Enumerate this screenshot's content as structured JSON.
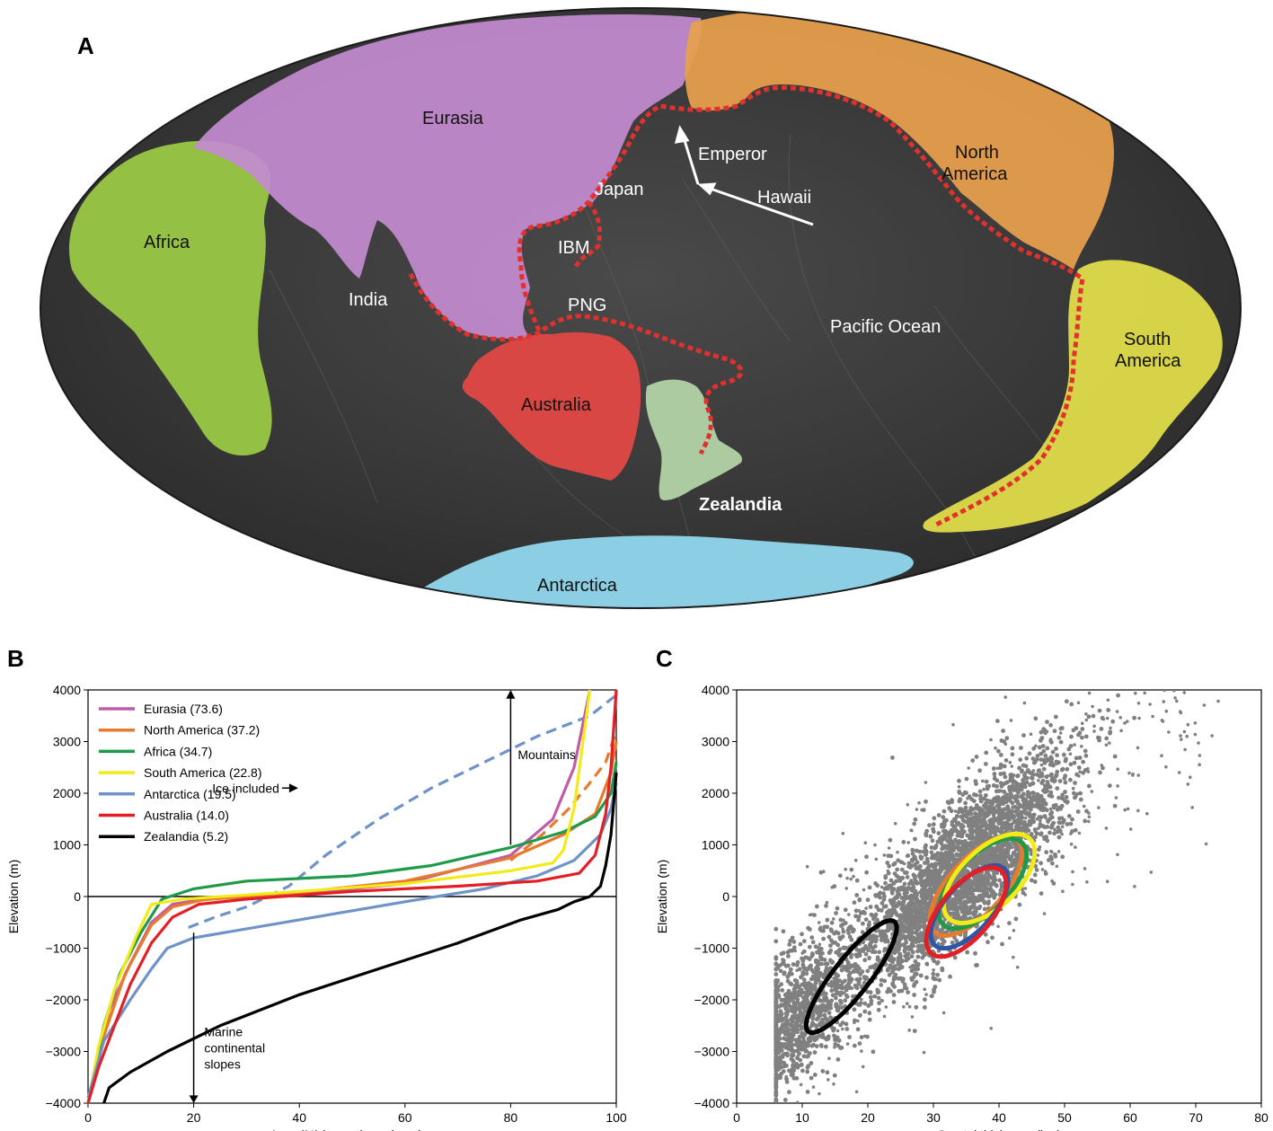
{
  "panel_letters": {
    "a": "A",
    "b": "B",
    "c": "C"
  },
  "map": {
    "labels": {
      "eurasia": "Eurasia",
      "africa": "Africa",
      "india": "India",
      "japan": "Japan",
      "emperor": "Emperor",
      "hawaii": "Hawaii",
      "ibm": "IBM",
      "png": "PNG",
      "north_america": [
        "North",
        "America"
      ],
      "south_america": [
        "South",
        "America"
      ],
      "pacific": "Pacific Ocean",
      "australia": "Australia",
      "zealandia": "Zealandia",
      "antarctica": "Antarctica"
    },
    "colors": {
      "eurasia": "#c48bd0",
      "africa": "#9ccc45",
      "north_america": "#e8a04e",
      "south_america": "#e3e04a",
      "australia": "#e24846",
      "zealandia": "#b3d3a6",
      "antarctica": "#8ccfe4",
      "ocean": "#3a3a3a",
      "boundary": "#e0312e"
    }
  },
  "chart_data": [
    {
      "type": "line",
      "panel": "B",
      "xlabel": "Area (%) lower than elevation",
      "ylabel": "Elevation (m)",
      "xlim": [
        0,
        100
      ],
      "ylim": [
        -4000,
        4000
      ],
      "xticks": [
        "0",
        "20",
        "40",
        "60",
        "80",
        "100"
      ],
      "yticks": [
        "−4000",
        "−3000",
        "−2000",
        "−1000",
        "0",
        "1000",
        "2000",
        "3000",
        "4000"
      ],
      "legend_position": "top-left",
      "series": [
        {
          "name": "Eurasia (73.6)",
          "color": "#c05ba8",
          "dashed": false,
          "points": [
            [
              0,
              -4000
            ],
            [
              2,
              -3000
            ],
            [
              4,
              -2200
            ],
            [
              8,
              -1300
            ],
            [
              12,
              -500
            ],
            [
              16,
              -150
            ],
            [
              22,
              -50
            ],
            [
              40,
              50
            ],
            [
              60,
              250
            ],
            [
              80,
              800
            ],
            [
              88,
              1500
            ],
            [
              92,
              2500
            ],
            [
              95,
              4000
            ]
          ]
        },
        {
          "name": "North America (37.2)",
          "color": "#e87a2e",
          "dashed": false,
          "points": [
            [
              0,
              -4000
            ],
            [
              3,
              -2700
            ],
            [
              7,
              -1500
            ],
            [
              12,
              -550
            ],
            [
              16,
              -200
            ],
            [
              22,
              -60
            ],
            [
              40,
              80
            ],
            [
              60,
              300
            ],
            [
              80,
              750
            ],
            [
              90,
              1200
            ],
            [
              96,
              1600
            ],
            [
              99,
              2400
            ],
            [
              100,
              3000
            ]
          ]
        },
        {
          "name": "Africa (34.7)",
          "color": "#1e9a48",
          "dashed": false,
          "points": [
            [
              0,
              -4000
            ],
            [
              3,
              -2500
            ],
            [
              6,
              -1500
            ],
            [
              10,
              -700
            ],
            [
              14,
              -50
            ],
            [
              20,
              150
            ],
            [
              30,
              300
            ],
            [
              50,
              400
            ],
            [
              65,
              600
            ],
            [
              80,
              950
            ],
            [
              90,
              1250
            ],
            [
              96,
              1550
            ],
            [
              99,
              2000
            ],
            [
              100,
              2600
            ]
          ]
        },
        {
          "name": "South America (22.8)",
          "color": "#f3ea19",
          "dashed": false,
          "points": [
            [
              0,
              -4000
            ],
            [
              2,
              -2900
            ],
            [
              5,
              -1800
            ],
            [
              9,
              -800
            ],
            [
              12,
              -150
            ],
            [
              18,
              -50
            ],
            [
              40,
              100
            ],
            [
              60,
              250
            ],
            [
              80,
              500
            ],
            [
              88,
              650
            ],
            [
              90,
              900
            ],
            [
              92,
              1700
            ],
            [
              95,
              4000
            ]
          ]
        },
        {
          "name": "Antarctica (19.5)",
          "color": "#6e93c9",
          "dashed": false,
          "points": [
            [
              0,
              -3900
            ],
            [
              3,
              -2800
            ],
            [
              8,
              -2000
            ],
            [
              12,
              -1400
            ],
            [
              15,
              -1000
            ],
            [
              20,
              -800
            ],
            [
              40,
              -450
            ],
            [
              60,
              -100
            ],
            [
              75,
              150
            ],
            [
              85,
              400
            ],
            [
              92,
              700
            ],
            [
              97,
              1200
            ],
            [
              99,
              1700
            ],
            [
              100,
              2200
            ]
          ]
        },
        {
          "name": "Australia (14.0)",
          "color": "#e31e24",
          "dashed": false,
          "points": [
            [
              0,
              -4000
            ],
            [
              2,
              -3300
            ],
            [
              5,
              -2500
            ],
            [
              8,
              -1700
            ],
            [
              12,
              -900
            ],
            [
              16,
              -400
            ],
            [
              21,
              -150
            ],
            [
              30,
              -50
            ],
            [
              50,
              100
            ],
            [
              70,
              200
            ],
            [
              85,
              300
            ],
            [
              93,
              450
            ],
            [
              96,
              800
            ],
            [
              98,
              1600
            ],
            [
              99,
              2500
            ],
            [
              100,
              4000
            ]
          ]
        },
        {
          "name": "Zealandia (5.2)",
          "color": "#000000",
          "dashed": false,
          "points": [
            [
              3,
              -4000
            ],
            [
              4,
              -3700
            ],
            [
              8,
              -3400
            ],
            [
              15,
              -3000
            ],
            [
              25,
              -2500
            ],
            [
              40,
              -1900
            ],
            [
              55,
              -1400
            ],
            [
              70,
              -900
            ],
            [
              82,
              -450
            ],
            [
              89,
              -250
            ],
            [
              92,
              -100
            ],
            [
              95,
              0
            ],
            [
              97,
              200
            ],
            [
              98,
              600
            ],
            [
              99,
              1200
            ],
            [
              100,
              2400
            ]
          ]
        },
        {
          "name": "",
          "color": "#6e93c9",
          "dashed": true,
          "points": [
            [
              19,
              -600
            ],
            [
              24,
              -400
            ],
            [
              30,
              -200
            ],
            [
              38,
              200
            ],
            [
              45,
              800
            ],
            [
              55,
              1500
            ],
            [
              65,
              2100
            ],
            [
              75,
              2600
            ],
            [
              85,
              3100
            ],
            [
              95,
              3500
            ],
            [
              100,
              3900
            ]
          ]
        },
        {
          "name": "",
          "color": "#e87a2e",
          "dashed": true,
          "points": [
            [
              80,
              700
            ],
            [
              86,
              1200
            ],
            [
              91,
              1700
            ],
            [
              95,
              2200
            ],
            [
              98,
              2600
            ],
            [
              100,
              3200
            ]
          ]
        }
      ],
      "annotations": [
        {
          "text": "Ice included",
          "x": 34,
          "y": 2100
        },
        {
          "text": "Mountains",
          "x": 80.5,
          "y": 2750
        },
        {
          "text": [
            "Marine",
            "continental",
            "slopes"
          ],
          "x": 22,
          "y": -2700
        }
      ]
    },
    {
      "type": "scatter",
      "panel": "C",
      "xlabel": "Crustal thickness (km)",
      "ylabel": "Elevation (m)",
      "xlim": [
        0,
        80
      ],
      "ylim": [
        -4000,
        4000
      ],
      "xticks": [
        "0",
        "10",
        "20",
        "30",
        "40",
        "50",
        "60",
        "70",
        "80"
      ],
      "yticks": [
        "−4000",
        "−3000",
        "−2000",
        "−1000",
        "0",
        "1000",
        "2000",
        "3000",
        "4000"
      ],
      "scatter_color": "#808080",
      "scatter_trend": {
        "x_range": [
          6,
          74
        ],
        "y_at_x10": -2200,
        "slope_m_per_km": 110
      },
      "ellipses": [
        {
          "color": "#e87a2e",
          "cx": 36.5,
          "cy": 200,
          "rx": 7.5,
          "ry": 1200,
          "angle": 42
        },
        {
          "color": "#1e9a48",
          "cx": 37.5,
          "cy": 250,
          "rx": 7.5,
          "ry": 1100,
          "angle": 44
        },
        {
          "color": "#f3ea19",
          "cx": 38.5,
          "cy": 350,
          "rx": 8,
          "ry": 1100,
          "angle": 46
        },
        {
          "color": "#2e55a6",
          "cx": 35.5,
          "cy": -200,
          "rx": 6.5,
          "ry": 1000,
          "angle": 42
        },
        {
          "color": "#e31e24",
          "cx": 35,
          "cy": -300,
          "rx": 7,
          "ry": 1050,
          "angle": 40
        },
        {
          "color": "#000000",
          "cx": 17.5,
          "cy": -1550,
          "rx": 5,
          "ry": 1350,
          "angle": 38
        }
      ]
    }
  ]
}
